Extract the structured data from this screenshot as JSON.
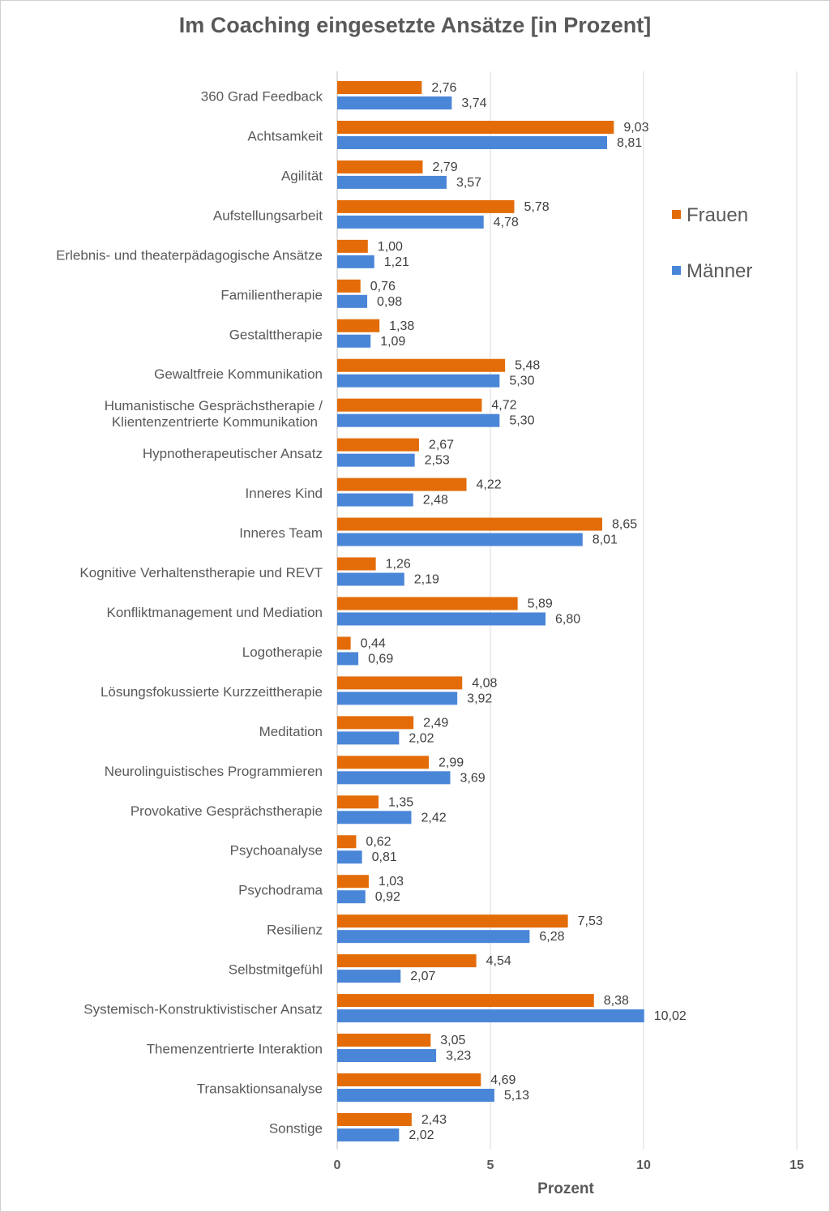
{
  "chart_data": {
    "type": "bar",
    "orientation": "horizontal",
    "title": "Im Coaching eingesetzte Ansätze [in Prozent]",
    "xlabel": "Prozent",
    "ylabel": "",
    "xlim": [
      0,
      15
    ],
    "xticks": [
      "0",
      "5",
      "10",
      "15"
    ],
    "grid": "vertical",
    "legend_position": "right",
    "categories": [
      "360 Grad Feedback",
      "Achtsamkeit",
      "Agilität",
      "Aufstellungsarbeit",
      "Erlebnis- und theaterpädagogische Ansätze",
      "Familientherapie",
      "Gestalttherapie",
      "Gewaltfreie Kommunikation",
      "Humanistische Gesprächstherapie / Klientenzentrierte Kommunikation",
      "Hypnotherapeutischer Ansatz",
      "Inneres Kind",
      "Inneres Team",
      "Kognitive Verhaltenstherapie und REVT",
      "Konfliktmanagement und Mediation",
      "Logotherapie",
      "Lösungsfokussierte Kurzzeittherapie",
      "Meditation",
      "Neurolinguistisches Programmieren",
      "Provokative Gesprächstherapie",
      "Psychoanalyse",
      "Psychodrama",
      "Resilienz",
      "Selbstmitgefühl",
      "Systemisch-Konstruktivistischer Ansatz",
      "Themenzentrierte Interaktion",
      "Transaktionsanalyse",
      "Sonstige"
    ],
    "series": [
      {
        "name": "Frauen",
        "color": "#E36C09",
        "values": [
          2.76,
          9.03,
          2.79,
          5.78,
          1.0,
          0.76,
          1.38,
          5.48,
          4.72,
          2.67,
          4.22,
          8.65,
          1.26,
          5.89,
          0.44,
          4.08,
          2.49,
          2.99,
          1.35,
          0.62,
          1.03,
          7.53,
          4.54,
          8.38,
          3.05,
          4.69,
          2.43
        ],
        "labels": [
          "2,76",
          "9,03",
          "2,79",
          "5,78",
          "1,00",
          "0,76",
          "1,38",
          "5,48",
          "4,72",
          "2,67",
          "4,22",
          "8,65",
          "1,26",
          "5,89",
          "0,44",
          "4,08",
          "2,49",
          "2,99",
          "1,35",
          "0,62",
          "1,03",
          "7,53",
          "4,54",
          "8,38",
          "3,05",
          "4,69",
          "2,43"
        ]
      },
      {
        "name": "Männer",
        "color": "#4A86D8",
        "values": [
          3.74,
          8.81,
          3.57,
          4.78,
          1.21,
          0.98,
          1.09,
          5.3,
          5.3,
          2.53,
          2.48,
          8.01,
          2.19,
          6.8,
          0.69,
          3.92,
          2.02,
          3.69,
          2.42,
          0.81,
          0.92,
          6.28,
          2.07,
          10.02,
          3.23,
          5.13,
          2.02
        ],
        "labels": [
          "3,74",
          "8,81",
          "3,57",
          "4,78",
          "1,21",
          "0,98",
          "1,09",
          "5,30",
          "5,30",
          "2,53",
          "2,48",
          "8,01",
          "2,19",
          "6,80",
          "0,69",
          "3,92",
          "2,02",
          "3,69",
          "2,42",
          "0,81",
          "0,92",
          "6,28",
          "2,07",
          "10,02",
          "3,23",
          "5,13",
          "2,02"
        ]
      }
    ]
  }
}
